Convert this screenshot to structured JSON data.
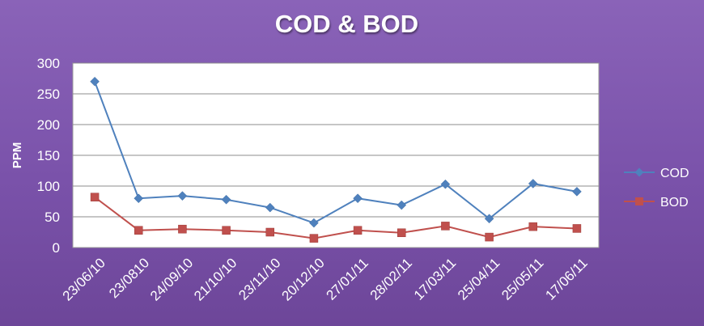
{
  "chart_data": {
    "type": "line",
    "title": "COD & BOD",
    "ylabel": "PPM",
    "xlabel": "",
    "ylim": [
      0,
      300
    ],
    "yticks": [
      0,
      50,
      100,
      150,
      200,
      250,
      300
    ],
    "grid": true,
    "legend_position": "right",
    "categories": [
      "23/06/10",
      "23/0810",
      "24/09/10",
      "21/10/10",
      "23/11/10",
      "20/12/10",
      "27/01/11",
      "28/02/11",
      "17/03/11",
      "25/04/11",
      "25/05/11",
      "17/06/11"
    ],
    "series": [
      {
        "name": "COD",
        "color": "#4f81bd",
        "marker": "diamond",
        "values": [
          270,
          80,
          84,
          78,
          65,
          40,
          80,
          69,
          103,
          47,
          104,
          91
        ]
      },
      {
        "name": "BOD",
        "color": "#c0504d",
        "marker": "square",
        "values": [
          82,
          28,
          30,
          28,
          25,
          15,
          28,
          24,
          35,
          17,
          34,
          31
        ]
      }
    ]
  }
}
